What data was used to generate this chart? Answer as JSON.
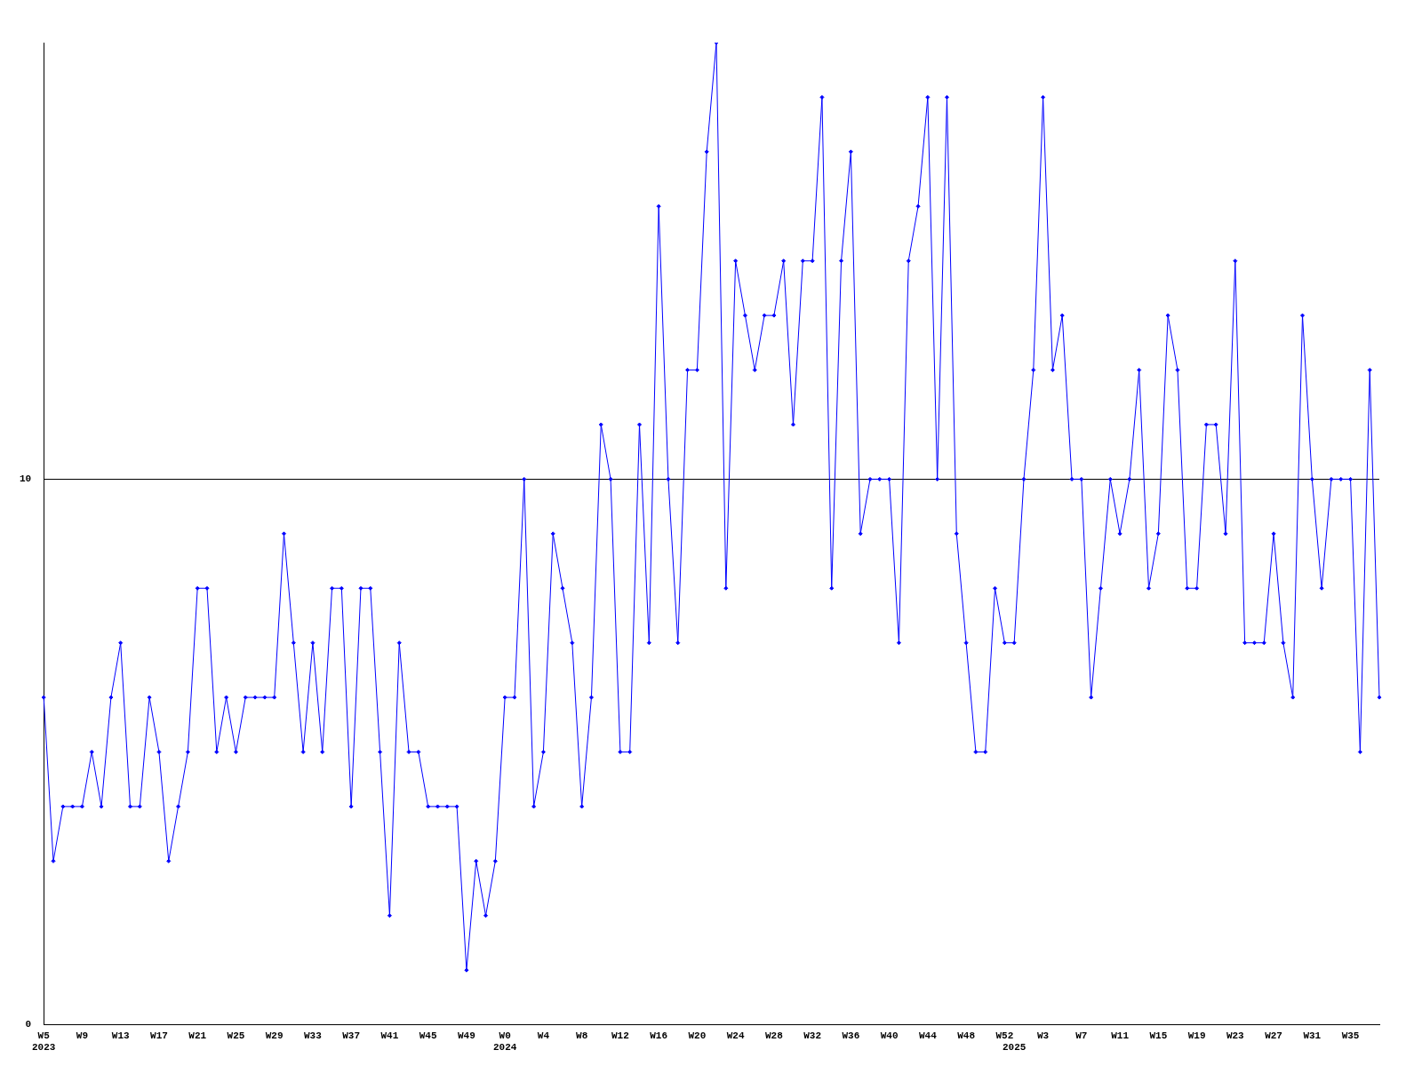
{
  "chart_data": {
    "type": "line",
    "categories": [
      "W5\n2023",
      null,
      null,
      null,
      "W9",
      null,
      null,
      null,
      "W13",
      null,
      null,
      null,
      "W17",
      null,
      null,
      null,
      "W21",
      null,
      null,
      null,
      "W25",
      null,
      null,
      null,
      "W29",
      null,
      null,
      null,
      "W33",
      null,
      null,
      null,
      "W37",
      null,
      null,
      null,
      "W41",
      null,
      null,
      null,
      "W45",
      null,
      null,
      null,
      "W49",
      null,
      null,
      null,
      "W0\n2024",
      null,
      null,
      null,
      "W4",
      null,
      null,
      null,
      "W8",
      null,
      null,
      null,
      "W12",
      null,
      null,
      null,
      "W16",
      null,
      null,
      null,
      "W20",
      null,
      null,
      null,
      "W24",
      null,
      null,
      null,
      "W28",
      null,
      null,
      null,
      "W32",
      null,
      null,
      null,
      "W36",
      null,
      null,
      null,
      "W40",
      null,
      null,
      null,
      "W44",
      null,
      null,
      null,
      "W48",
      null,
      null,
      null,
      "W52",
      "\n2025",
      null,
      null,
      "W3",
      null,
      null,
      null,
      "W7",
      null,
      null,
      null,
      "W11",
      null,
      null,
      null,
      "W15",
      null,
      null,
      null,
      "W19",
      null,
      null,
      null,
      "W23",
      null,
      null,
      null,
      "W27",
      null,
      null,
      null,
      "W31",
      null,
      null,
      null,
      "W35",
      null,
      null,
      null
    ],
    "values": [
      6,
      3,
      4,
      4,
      4,
      5,
      4,
      6,
      7,
      4,
      4,
      6,
      5,
      3,
      4,
      5,
      8,
      8,
      5,
      6,
      5,
      6,
      6,
      6,
      6,
      9,
      7,
      5,
      7,
      5,
      8,
      8,
      4,
      8,
      8,
      5,
      2,
      7,
      5,
      5,
      4,
      4,
      4,
      4,
      1,
      3,
      2,
      3,
      6,
      6,
      10,
      4,
      5,
      9,
      8,
      7,
      4,
      6,
      11,
      10,
      5,
      5,
      11,
      7,
      15,
      10,
      7,
      12,
      12,
      16,
      18,
      8,
      14,
      13,
      12,
      13,
      13,
      14,
      11,
      14,
      14,
      17,
      8,
      14,
      16,
      9,
      10,
      10,
      10,
      7,
      14,
      15,
      17,
      10,
      17,
      9,
      7,
      5,
      5,
      8,
      7,
      7,
      10,
      12,
      17,
      12,
      13,
      10,
      10,
      6,
      8,
      10,
      9,
      10,
      12,
      8,
      9,
      13,
      12,
      8,
      8,
      11,
      11,
      9,
      14,
      7,
      7,
      7,
      9,
      7,
      6,
      13,
      10,
      8,
      10,
      10,
      10,
      5,
      12,
      6
    ],
    "color": "#0000ff",
    "ylim": [
      0,
      18
    ],
    "yticks": [
      0,
      10
    ],
    "grid": "y",
    "marker": "diamond"
  }
}
